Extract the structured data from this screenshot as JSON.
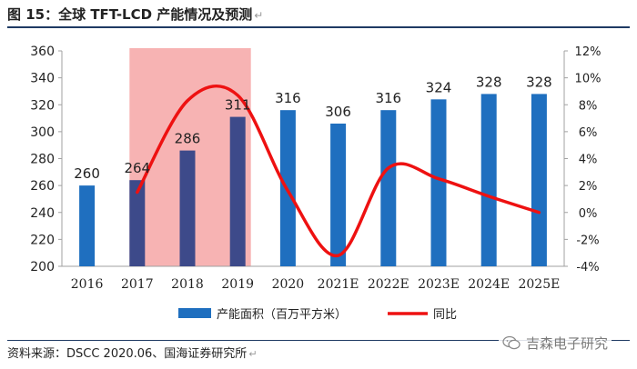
{
  "figure": {
    "title": "图 15：全球 TFT-LCD 产能情况及预测",
    "source": "资料来源：DSCC 2020.06、国海证券研究所",
    "watermark": "吉森电子研究",
    "paragraph_mark": "↵"
  },
  "chart_data": {
    "type": "bar",
    "categories": [
      "2016",
      "2017",
      "2018",
      "2019",
      "2020",
      "2021E",
      "2022E",
      "2023E",
      "2024E",
      "2025E"
    ],
    "series": [
      {
        "name": "产能面积（百万平方米）",
        "type": "bar",
        "axis": "left",
        "values": [
          260,
          264,
          286,
          311,
          316,
          306,
          316,
          324,
          328,
          328
        ],
        "color": "#1f6fbf",
        "highlight_color": "#3d4a8a"
      },
      {
        "name": "同比",
        "type": "line",
        "axis": "right",
        "values": [
          null,
          1.5,
          8.3,
          8.7,
          1.6,
          -3.2,
          3.3,
          2.5,
          1.2,
          0.0
        ],
        "color": "#ee1111"
      }
    ],
    "data_labels": [
      "260",
      "264",
      "286",
      "311",
      "316",
      "306",
      "316",
      "324",
      "328",
      "328"
    ],
    "y_left": {
      "min": 200,
      "max": 360,
      "ticks": [
        "200",
        "220",
        "240",
        "260",
        "280",
        "300",
        "320",
        "340",
        "360"
      ]
    },
    "y_right": {
      "min": -4,
      "max": 12,
      "ticks": [
        "-4%",
        "-2%",
        "0%",
        "2%",
        "4%",
        "6%",
        "8%",
        "10%",
        "12%"
      ]
    },
    "shaded_period": {
      "from": "2017",
      "to": "2019",
      "color": "#f7b3b3"
    },
    "legend": [
      "产能面积（百万平方米）",
      "同比"
    ],
    "legend_position": "bottom"
  }
}
